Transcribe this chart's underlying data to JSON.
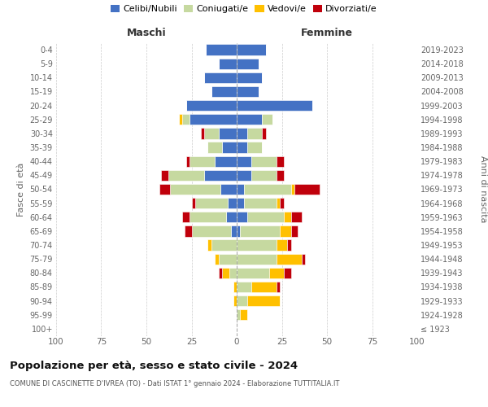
{
  "age_groups": [
    "100+",
    "95-99",
    "90-94",
    "85-89",
    "80-84",
    "75-79",
    "70-74",
    "65-69",
    "60-64",
    "55-59",
    "50-54",
    "45-49",
    "40-44",
    "35-39",
    "30-34",
    "25-29",
    "20-24",
    "15-19",
    "10-14",
    "5-9",
    "0-4"
  ],
  "birth_years": [
    "≤ 1923",
    "1924-1928",
    "1929-1933",
    "1934-1938",
    "1939-1943",
    "1944-1948",
    "1949-1953",
    "1954-1958",
    "1959-1963",
    "1964-1968",
    "1969-1973",
    "1974-1978",
    "1979-1983",
    "1984-1988",
    "1989-1993",
    "1994-1998",
    "1999-2003",
    "2004-2008",
    "2009-2013",
    "2014-2018",
    "2019-2023"
  ],
  "maschi": {
    "celibi": [
      0,
      0,
      0,
      0,
      0,
      0,
      0,
      3,
      6,
      5,
      9,
      18,
      12,
      8,
      10,
      26,
      28,
      14,
      18,
      10,
      17
    ],
    "coniugati": [
      0,
      0,
      0,
      0,
      4,
      10,
      14,
      22,
      20,
      18,
      28,
      20,
      14,
      8,
      8,
      4,
      0,
      0,
      0,
      0,
      0
    ],
    "vedovi": [
      0,
      0,
      2,
      2,
      4,
      2,
      2,
      0,
      0,
      0,
      0,
      0,
      0,
      0,
      0,
      2,
      0,
      0,
      0,
      0,
      0
    ],
    "divorziati": [
      0,
      0,
      0,
      0,
      2,
      0,
      0,
      4,
      4,
      2,
      6,
      4,
      2,
      0,
      2,
      0,
      0,
      0,
      0,
      0,
      0
    ]
  },
  "femmine": {
    "nubili": [
      0,
      0,
      0,
      0,
      0,
      0,
      0,
      2,
      6,
      4,
      4,
      8,
      8,
      6,
      6,
      14,
      42,
      12,
      14,
      12,
      16
    ],
    "coniugate": [
      0,
      2,
      6,
      8,
      18,
      22,
      22,
      22,
      20,
      18,
      26,
      14,
      14,
      8,
      8,
      6,
      0,
      0,
      0,
      0,
      0
    ],
    "vedove": [
      0,
      4,
      18,
      14,
      8,
      14,
      6,
      6,
      4,
      2,
      2,
      0,
      0,
      0,
      0,
      0,
      0,
      0,
      0,
      0,
      0
    ],
    "divorziate": [
      0,
      0,
      0,
      2,
      4,
      2,
      2,
      4,
      6,
      2,
      14,
      4,
      4,
      0,
      2,
      0,
      0,
      0,
      0,
      0,
      0
    ]
  },
  "colors": {
    "celibi": "#4472c4",
    "coniugati": "#c6d9a0",
    "vedovi": "#ffc000",
    "divorziati": "#c0000b"
  },
  "xlim": 100,
  "title": "Popolazione per età, sesso e stato civile - 2024",
  "subtitle": "COMUNE DI CASCINETTE D'IVREA (TO) - Dati ISTAT 1° gennaio 2024 - Elaborazione TUTTITALIA.IT",
  "ylabel_left": "Fasce di età",
  "ylabel_right": "Anni di nascita",
  "xlabel_maschi": "Maschi",
  "xlabel_femmine": "Femmine",
  "legend_labels": [
    "Celibi/Nubili",
    "Coniugati/e",
    "Vedovi/e",
    "Divorziati/e"
  ],
  "bg_color": "#ffffff",
  "grid_color": "#cccccc"
}
